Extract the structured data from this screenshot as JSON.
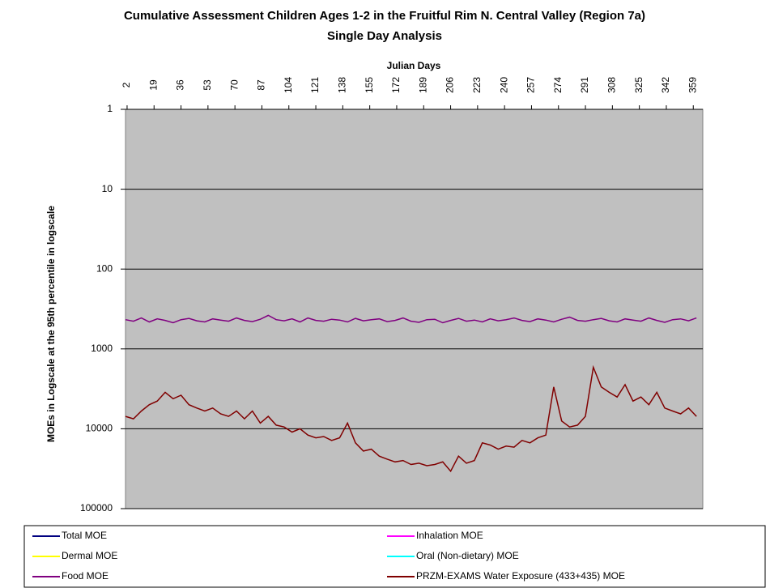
{
  "chart_data": {
    "type": "line",
    "title": "Cumulative Assessment Children Ages 1-2 in the Fruitful Rim N. Central Valley (Region 7a)",
    "subtitle": "Single Day Analysis",
    "x_label": "Julian Days",
    "y_label": "MOEs in Logscale at the 95th percentile in logscale",
    "x": [
      1,
      6,
      11,
      16,
      21,
      26,
      31,
      36,
      41,
      46,
      51,
      56,
      61,
      66,
      71,
      76,
      81,
      86,
      91,
      96,
      101,
      106,
      111,
      116,
      121,
      126,
      131,
      136,
      141,
      146,
      151,
      156,
      161,
      166,
      171,
      176,
      181,
      186,
      191,
      196,
      201,
      206,
      211,
      216,
      221,
      226,
      231,
      236,
      241,
      246,
      251,
      256,
      261,
      266,
      271,
      276,
      281,
      286,
      291,
      296,
      301,
      306,
      311,
      316,
      321,
      326,
      331,
      336,
      341,
      346,
      351,
      356,
      361
    ],
    "xlim": [
      1,
      365
    ],
    "xticks": [
      2,
      19,
      36,
      53,
      70,
      87,
      104,
      121,
      138,
      155,
      172,
      189,
      206,
      223,
      240,
      257,
      274,
      291,
      308,
      325,
      342,
      359
    ],
    "ylim": [
      1,
      100000
    ],
    "yticks": [
      1,
      10,
      100,
      1000,
      10000,
      100000
    ],
    "log_scale": true,
    "y_inverted": true,
    "grid": true,
    "series": [
      {
        "name": "Total MOE",
        "color": "#000080",
        "values": [
          null,
          null,
          null,
          null,
          null,
          null,
          null,
          null,
          null,
          null,
          null,
          null,
          null,
          null,
          null,
          null,
          null,
          null,
          null,
          null,
          null,
          null,
          null,
          null,
          null,
          null,
          null,
          null,
          null,
          null,
          null,
          null,
          null,
          null,
          null,
          null,
          null,
          null,
          null,
          null,
          null,
          null,
          null,
          null,
          null,
          null,
          null,
          null,
          null,
          null,
          null,
          null,
          null,
          null,
          null,
          null,
          null,
          null,
          null,
          null,
          null,
          null,
          null,
          null,
          null,
          null,
          null,
          null,
          null,
          null,
          null,
          null,
          null
        ]
      },
      {
        "name": "Inhalation MOE",
        "color": "#ff00ff",
        "values": [
          null,
          null,
          null,
          null,
          null,
          null,
          null,
          null,
          null,
          null,
          null,
          null,
          null,
          null,
          null,
          null,
          null,
          null,
          null,
          null,
          null,
          null,
          null,
          null,
          null,
          null,
          null,
          null,
          null,
          null,
          null,
          null,
          null,
          null,
          null,
          null,
          null,
          null,
          null,
          null,
          null,
          null,
          null,
          null,
          null,
          null,
          null,
          null,
          null,
          null,
          null,
          null,
          null,
          null,
          null,
          null,
          null,
          null,
          null,
          null,
          null,
          null,
          null,
          null,
          null,
          null,
          null,
          null,
          null,
          null,
          null,
          null,
          null
        ]
      },
      {
        "name": "Dermal MOE",
        "color": "#ffff00",
        "values": [
          null,
          null,
          null,
          null,
          null,
          null,
          null,
          null,
          null,
          null,
          null,
          null,
          null,
          null,
          null,
          null,
          null,
          null,
          null,
          null,
          null,
          null,
          null,
          null,
          null,
          null,
          null,
          null,
          null,
          null,
          null,
          null,
          null,
          null,
          null,
          null,
          null,
          null,
          null,
          null,
          null,
          null,
          null,
          null,
          null,
          null,
          null,
          null,
          null,
          null,
          null,
          null,
          null,
          null,
          null,
          null,
          null,
          null,
          null,
          null,
          null,
          null,
          null,
          null,
          null,
          null,
          null,
          null,
          null,
          null,
          null,
          null,
          null
        ]
      },
      {
        "name": "Oral (Non-dietary) MOE",
        "color": "#00ffff",
        "values": [
          null,
          null,
          null,
          null,
          null,
          null,
          null,
          null,
          null,
          null,
          null,
          null,
          null,
          null,
          null,
          null,
          null,
          null,
          null,
          null,
          null,
          null,
          null,
          null,
          null,
          null,
          null,
          null,
          null,
          null,
          null,
          null,
          null,
          null,
          null,
          null,
          null,
          null,
          null,
          null,
          null,
          null,
          null,
          null,
          null,
          null,
          null,
          null,
          null,
          null,
          null,
          null,
          null,
          null,
          null,
          null,
          null,
          null,
          null,
          null,
          null,
          null,
          null,
          null,
          null,
          null,
          null,
          null,
          null,
          null,
          null,
          null,
          null
        ]
      },
      {
        "name": "Food MOE",
        "color": "#800080",
        "values": [
          430,
          450,
          410,
          460,
          420,
          440,
          470,
          430,
          415,
          445,
          460,
          420,
          435,
          450,
          410,
          440,
          455,
          425,
          380,
          430,
          445,
          420,
          460,
          410,
          440,
          450,
          425,
          435,
          460,
          415,
          445,
          430,
          420,
          455,
          440,
          410,
          450,
          465,
          430,
          425,
          470,
          440,
          415,
          450,
          435,
          460,
          420,
          445,
          430,
          410,
          440,
          455,
          420,
          435,
          460,
          425,
          400,
          440,
          450,
          430,
          415,
          445,
          460,
          420,
          435,
          450,
          410,
          440,
          465,
          430,
          420,
          445,
          410
        ]
      },
      {
        "name": "PRZM-EXAMS Water Exposure (433+435) MOE",
        "color": "#800000",
        "values": [
          7000,
          7500,
          6000,
          5000,
          4500,
          3500,
          4200,
          3800,
          5000,
          5500,
          6000,
          5500,
          6500,
          7000,
          6000,
          7500,
          6000,
          8500,
          7000,
          9000,
          9500,
          11000,
          10000,
          12000,
          13000,
          12500,
          14000,
          13000,
          8500,
          15000,
          19000,
          18000,
          22000,
          24000,
          26000,
          25000,
          28000,
          27000,
          29000,
          28000,
          26000,
          34000,
          22000,
          27000,
          25000,
          15000,
          16000,
          18000,
          16500,
          17000,
          14000,
          15000,
          13000,
          12000,
          3000,
          8000,
          9500,
          9000,
          7000,
          1700,
          3000,
          3500,
          4000,
          2800,
          4500,
          4000,
          5000,
          3500,
          5500,
          6000,
          6500,
          5500,
          7000
        ]
      }
    ]
  }
}
